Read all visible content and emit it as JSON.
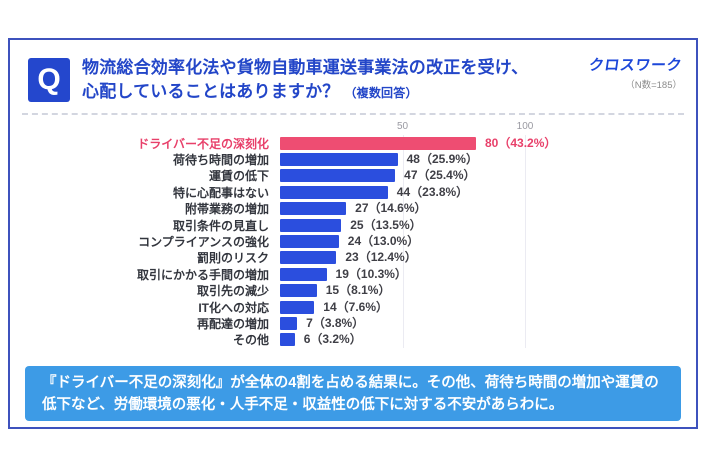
{
  "header": {
    "q_label": "Q",
    "title_line1": "物流総合効率化法や貨物自動車運送事業法の改正を受け、",
    "title_line2": "心配していることはありますか？",
    "title_note": "（複数回答）",
    "brand": "クロスワーク",
    "sample": "（N数=185）"
  },
  "chart_data": {
    "type": "bar",
    "orientation": "horizontal",
    "title": "",
    "x_ticks": [
      50,
      100
    ],
    "xlim": [
      0,
      115
    ],
    "grid": "vertical-light",
    "highlight_index": 0,
    "categories": [
      "ドライバー不足の深刻化",
      "荷待ち時間の増加",
      "運賃の低下",
      "特に心配事はない",
      "附帯業務の増加",
      "取引条件の見直し",
      "コンプライアンスの強化",
      "罰則のリスク",
      "取引にかかる手間の増加",
      "取引先の減少",
      "IT化への対応",
      "再配達の増加",
      "その他"
    ],
    "values": [
      80,
      48,
      47,
      44,
      27,
      25,
      24,
      23,
      19,
      15,
      14,
      7,
      6
    ],
    "value_labels": [
      "80（43.2%）",
      "48（25.9%）",
      "47（25.4%）",
      "44（23.8%）",
      "27（14.6%）",
      "25（13.5%）",
      "24（13.0%）",
      "23（12.4%）",
      "19（10.3%）",
      "15（8.1%）",
      "14（7.6%）",
      "7（3.8%）",
      "6（3.2%）"
    ],
    "colors": {
      "bar": "#2b4ede",
      "highlight_bar": "#ee4d72",
      "highlight_text": "#e8406a",
      "label_text": "#33363e"
    }
  },
  "footer": {
    "line1": "『ドライバー不足の深刻化』が全体の4割を占める結果に。その他、荷待ち時間の増加や運賃の",
    "line2": "低下など、労働環境の悪化・人手不足・収益性の低下に対する不安があらわに。"
  }
}
